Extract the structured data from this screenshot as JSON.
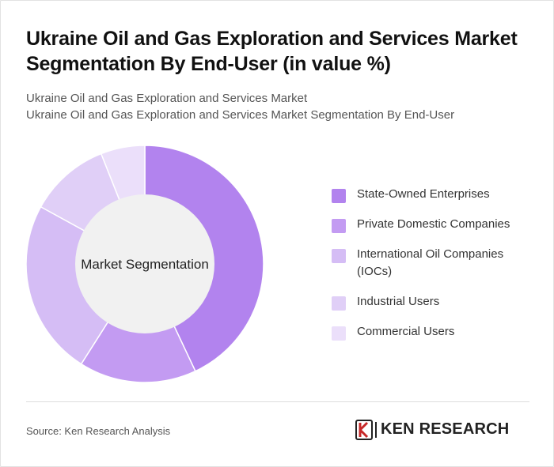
{
  "title": "Ukraine Oil and Gas Exploration and Services Market Segmentation By End-User (in value %)",
  "subtitle_line1": "Ukraine Oil and Gas Exploration and Services Market",
  "subtitle_line2": "Ukraine Oil and Gas Exploration and Services Market Segmentation By End-User",
  "source": "Source: Ken Research Analysis",
  "logo_text": "KEN RESEARCH",
  "logo_icon": "ken-research-logo-icon",
  "chart_data": {
    "type": "pie",
    "variant": "donut",
    "center_label": "Market Segmentation",
    "legend_position": "right",
    "categories": [
      "State-Owned Enterprises",
      "Private Domestic Companies",
      "International Oil Companies (IOCs)",
      "Industrial Users",
      "Commercial Users"
    ],
    "values": [
      43,
      16,
      24,
      11,
      6
    ],
    "colors": [
      "#b283ee",
      "#c39bf2",
      "#d5bdf5",
      "#e0cff7",
      "#ebdffa"
    ]
  }
}
